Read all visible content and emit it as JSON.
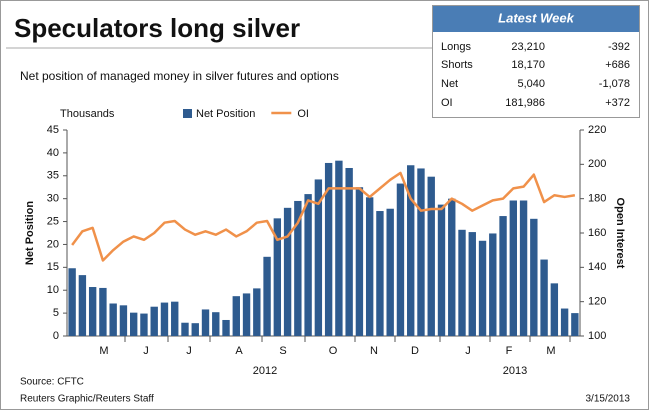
{
  "chart_data": {
    "type": "bar",
    "title": "Speculators long silver",
    "subtitle": "Net position of managed money in silver futures and options",
    "y_unit": "Thousands",
    "y_label": "Net Position",
    "y2_label": "Open Interest",
    "month_labels": [
      "M",
      "J",
      "J",
      "A",
      "S",
      "O",
      "N",
      "D",
      "J",
      "F",
      "M"
    ],
    "year_labels": [
      "2012",
      "2013"
    ],
    "series": [
      {
        "name": "Net Position",
        "type": "bar",
        "color": "#2e5b8f",
        "values": [
          14.8,
          13.3,
          10.7,
          10.5,
          7.1,
          6.7,
          5.1,
          4.9,
          6.4,
          7.3,
          7.5,
          2.9,
          2.8,
          5.8,
          5.2,
          3.5,
          8.7,
          9.3,
          10.4,
          17.3,
          25.7,
          28.0,
          29.5,
          31.0,
          34.2,
          37.8,
          38.3,
          36.7,
          32.5,
          30.3,
          27.3,
          27.8,
          33.3,
          37.3,
          36.6,
          34.8,
          28.7,
          30.0,
          23.2,
          22.7,
          20.8,
          22.4,
          26.2,
          29.6,
          29.6,
          25.6,
          16.7,
          11.5,
          6.0,
          5.0
        ]
      },
      {
        "name": "OI",
        "type": "line",
        "axis": "y2",
        "color": "#f0914a",
        "values": [
          153,
          161,
          163,
          144,
          150,
          155,
          158,
          156,
          160,
          166,
          167,
          162,
          159,
          161,
          159,
          162,
          158,
          161,
          166,
          167,
          156,
          158,
          166,
          179,
          177,
          186,
          186,
          186,
          186,
          181,
          186,
          191,
          195,
          180,
          173,
          174,
          174,
          180,
          177,
          173,
          176,
          179,
          180,
          186,
          187,
          194,
          178,
          182,
          181,
          182
        ]
      }
    ],
    "ylim": [
      0,
      45
    ],
    "yticks": [
      0,
      5,
      10,
      15,
      20,
      25,
      30,
      35,
      40,
      45
    ],
    "y2lim": [
      100,
      220
    ],
    "y2ticks": [
      100,
      120,
      140,
      160,
      180,
      200,
      220
    ],
    "source": "Source: CFTC",
    "credit": "Reuters Graphic/Reuters Staff",
    "date": "3/15/2013"
  },
  "latest_week": {
    "title": "Latest Week",
    "rows": [
      [
        "Longs",
        "23,210",
        "-392"
      ],
      [
        "Shorts",
        "18,170",
        "+686"
      ],
      [
        "Net",
        "5,040",
        "-1,078"
      ],
      [
        "OI",
        "181,986",
        "+372"
      ]
    ]
  }
}
